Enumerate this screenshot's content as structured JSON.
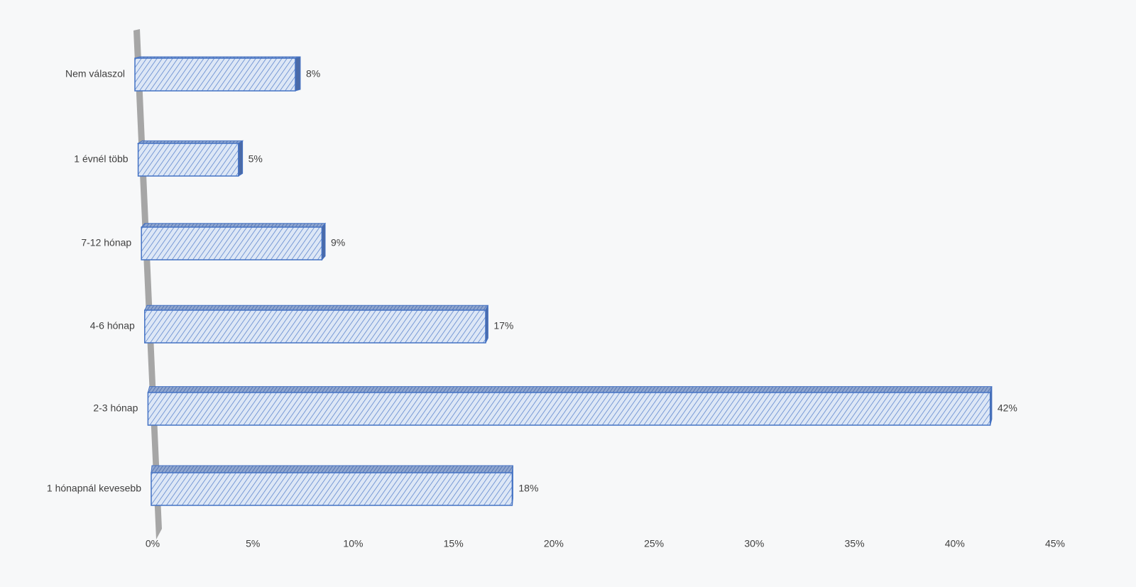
{
  "chart_data": {
    "type": "bar3d-horizontal",
    "categories": [
      "Nem válaszol",
      "1 évnél több",
      "7-12 hónap",
      "4-6 hónap",
      "2-3 hónap",
      "1 hónapnál kevesebb"
    ],
    "values": [
      8,
      5,
      9,
      17,
      42,
      18
    ],
    "value_labels": [
      "8%",
      "5%",
      "9%",
      "17%",
      "42%",
      "18%"
    ],
    "color": "#4472c4",
    "xlim": [
      0,
      45
    ],
    "xticks": [
      {
        "value": 0,
        "label": "0%"
      },
      {
        "value": 5,
        "label": "5%"
      },
      {
        "value": 10,
        "label": "10%"
      },
      {
        "value": 15,
        "label": "15%"
      },
      {
        "value": 20,
        "label": "20%"
      },
      {
        "value": 25,
        "label": "25%"
      },
      {
        "value": 30,
        "label": "30%"
      },
      {
        "value": 35,
        "label": "35%"
      },
      {
        "value": 40,
        "label": "40%"
      },
      {
        "value": 45,
        "label": "45%"
      }
    ],
    "grid": false
  }
}
